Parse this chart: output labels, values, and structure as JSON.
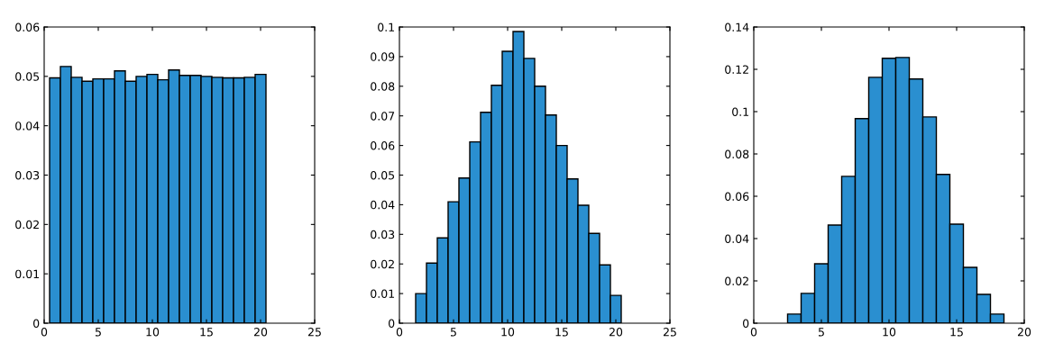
{
  "chart_data": [
    {
      "type": "histogram",
      "bins": [
        0.5,
        1.5,
        2.5,
        3.5,
        4.5,
        5.5,
        6.5,
        7.5,
        8.5,
        9.5,
        10.5,
        11.5,
        12.5,
        13.5,
        14.5,
        15.5,
        16.5,
        17.5,
        18.5,
        19.5,
        20.5
      ],
      "values": [
        0.0497,
        0.052,
        0.0498,
        0.049,
        0.0495,
        0.0495,
        0.0511,
        0.049,
        0.05,
        0.0504,
        0.0493,
        0.0513,
        0.0502,
        0.0502,
        0.05,
        0.0498,
        0.0497,
        0.0497,
        0.0498,
        0.0504
      ],
      "color": "#2a8fd0",
      "xlim": [
        0,
        25
      ],
      "xticks": [
        0,
        5,
        10,
        15,
        20,
        25
      ],
      "ylim": [
        0,
        0.06
      ],
      "yticks": [
        0,
        0.01,
        0.02,
        0.03,
        0.04,
        0.05,
        0.06
      ],
      "grid": false
    },
    {
      "type": "histogram",
      "bins": [
        1.5,
        2.5,
        3.5,
        4.5,
        5.5,
        6.5,
        7.5,
        8.5,
        9.5,
        10.5,
        11.5,
        12.5,
        13.5,
        14.5,
        15.5,
        16.5,
        17.5,
        18.5,
        19.5,
        20.5
      ],
      "values": [
        0.01,
        0.0203,
        0.0288,
        0.041,
        0.049,
        0.0612,
        0.0712,
        0.0803,
        0.0918,
        0.0985,
        0.0894,
        0.08,
        0.0703,
        0.06,
        0.0487,
        0.0398,
        0.0303,
        0.0197,
        0.0094
      ],
      "color": "#2a8fd0",
      "xlim": [
        0,
        25
      ],
      "xticks": [
        0,
        5,
        10,
        15,
        20,
        25
      ],
      "ylim": [
        0,
        0.1
      ],
      "yticks": [
        0,
        0.01,
        0.02,
        0.03,
        0.04,
        0.05,
        0.06,
        0.07,
        0.08,
        0.09,
        0.1
      ],
      "grid": false
    },
    {
      "type": "histogram",
      "bins": [
        2.5,
        3.5,
        4.5,
        5.5,
        6.5,
        7.5,
        8.5,
        9.5,
        10.5,
        11.5,
        12.5,
        13.5,
        14.5,
        15.5,
        16.5,
        17.5,
        18.5
      ],
      "values": [
        0.0043,
        0.0141,
        0.0281,
        0.0464,
        0.0694,
        0.0967,
        0.1162,
        0.1252,
        0.1256,
        0.1154,
        0.0975,
        0.0703,
        0.0468,
        0.0264,
        0.0136,
        0.0043
      ],
      "color": "#2a8fd0",
      "xlim": [
        0,
        20
      ],
      "xticks": [
        0,
        5,
        10,
        15,
        20
      ],
      "ylim": [
        0,
        0.14
      ],
      "yticks": [
        0,
        0.02,
        0.04,
        0.06,
        0.08,
        0.1,
        0.12,
        0.14
      ],
      "grid": false
    }
  ]
}
